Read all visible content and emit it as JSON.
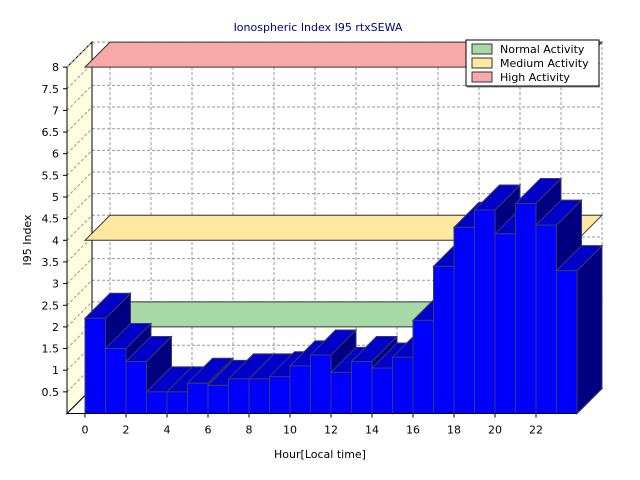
{
  "chart_data": {
    "type": "bar",
    "title": "Ionospheric Index I95 rtxSEWA",
    "xlabel": "Hour[Local time]",
    "ylabel": "I95 Index",
    "x": [
      0,
      1,
      2,
      3,
      4,
      5,
      6,
      7,
      8,
      9,
      10,
      11,
      12,
      13,
      14,
      15,
      16,
      17,
      18,
      19,
      20,
      21,
      22,
      23
    ],
    "values": [
      2.2,
      1.5,
      1.2,
      0.5,
      0.5,
      0.7,
      0.65,
      0.8,
      0.8,
      0.85,
      1.1,
      1.35,
      0.95,
      1.2,
      1.05,
      1.3,
      2.15,
      3.4,
      4.3,
      4.7,
      4.15,
      4.85,
      4.35,
      3.3
    ],
    "xticks": [
      "0",
      "2",
      "4",
      "6",
      "8",
      "10",
      "12",
      "14",
      "16",
      "18",
      "20",
      "22"
    ],
    "yticks": [
      "0.5",
      "1",
      "1.5",
      "2",
      "2.5",
      "3",
      "3.5",
      "4",
      "4.5",
      "5",
      "5.5",
      "6",
      "6.5",
      "7",
      "7.5",
      "8"
    ],
    "ylim": [
      0,
      8
    ],
    "grid": true,
    "legend_position": "top-right",
    "bar_color": "#0000ff",
    "bands": [
      {
        "name": "Normal Activity",
        "value": 2,
        "color": "#a8d8a8"
      },
      {
        "name": "Medium Activity",
        "value": 4,
        "color": "#ffe9a0"
      },
      {
        "name": "High Activity",
        "value": 8,
        "color": "#f8a8a8"
      }
    ]
  }
}
